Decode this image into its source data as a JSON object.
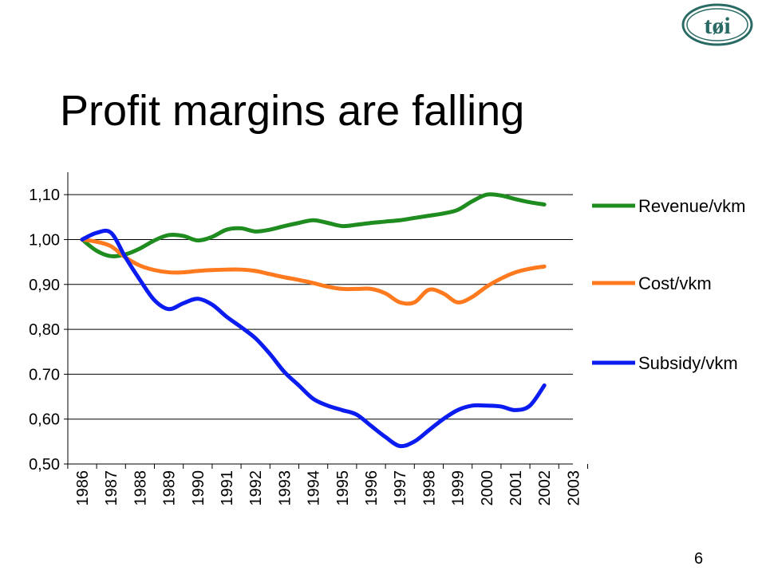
{
  "slide": {
    "title": "Profit margins are falling",
    "page_number": "6",
    "logo_text": "tøi"
  },
  "chart_data": {
    "type": "line",
    "title": "",
    "xlabel": "",
    "ylabel": "",
    "categories": [
      "1986",
      "1987",
      "1988",
      "1989",
      "1990",
      "1991",
      "1992",
      "1993",
      "1994",
      "1995",
      "1996",
      "1997",
      "1998",
      "1999",
      "2000",
      "2001",
      "2002",
      "2003"
    ],
    "y_tick_labels": [
      "0,50",
      "0,60",
      "0.70",
      "0,80",
      "0,90",
      "1,00",
      "1,10"
    ],
    "y_tick_values": [
      0.5,
      0.6,
      0.7,
      0.8,
      0.9,
      1.0,
      1.1
    ],
    "ylim": [
      0.5,
      1.15
    ],
    "grid": true,
    "legend_position": "right",
    "series": [
      {
        "name": "Revenue/vkm",
        "color": "#1f8c1f",
        "x": [
          1986,
          1986.5,
          1987,
          1987.5,
          1988,
          1988.5,
          1989,
          1989.5,
          1990,
          1990.5,
          1991,
          1991.5,
          1992,
          1992.5,
          1993,
          1993.5,
          1994,
          1994.5,
          1995,
          1995.5,
          1996,
          1996.5,
          1997,
          1997.5,
          1998,
          1998.5,
          1999,
          1999.5,
          2000,
          2000.5,
          2001,
          2001.5,
          2002
        ],
        "values": [
          1.0,
          0.975,
          0.963,
          0.967,
          0.98,
          0.998,
          1.01,
          1.008,
          0.998,
          1.006,
          1.022,
          1.025,
          1.018,
          1.022,
          1.03,
          1.037,
          1.043,
          1.037,
          1.03,
          1.033,
          1.037,
          1.04,
          1.043,
          1.048,
          1.053,
          1.058,
          1.066,
          1.085,
          1.1,
          1.098,
          1.09,
          1.083,
          1.078
        ]
      },
      {
        "name": "Cost/vkm",
        "color": "#ff7a1f",
        "x": [
          1986,
          1986.5,
          1987,
          1987.5,
          1988,
          1988.5,
          1989,
          1989.5,
          1990,
          1990.5,
          1991,
          1991.5,
          1992,
          1992.5,
          1993,
          1993.5,
          1994,
          1994.5,
          1995,
          1995.5,
          1996,
          1996.5,
          1997,
          1997.5,
          1998,
          1998.5,
          1999,
          1999.5,
          2000,
          2000.5,
          2001,
          2001.5,
          2002
        ],
        "values": [
          1.0,
          0.995,
          0.985,
          0.96,
          0.942,
          0.932,
          0.927,
          0.927,
          0.93,
          0.932,
          0.933,
          0.933,
          0.93,
          0.923,
          0.916,
          0.91,
          0.903,
          0.895,
          0.89,
          0.89,
          0.89,
          0.88,
          0.86,
          0.86,
          0.888,
          0.88,
          0.86,
          0.872,
          0.895,
          0.913,
          0.927,
          0.935,
          0.94
        ]
      },
      {
        "name": "Subsidy/vkm",
        "color": "#0a1cf0",
        "x": [
          1986,
          1986.5,
          1987,
          1987.5,
          1988,
          1988.5,
          1989,
          1989.5,
          1990,
          1990.5,
          1991,
          1991.5,
          1992,
          1992.5,
          1993,
          1993.5,
          1994,
          1994.5,
          1995,
          1995.5,
          1996,
          1996.5,
          1997,
          1997.5,
          1998,
          1998.5,
          1999,
          1999.5,
          2000,
          2000.5,
          2001,
          2001.5,
          2002
        ],
        "values": [
          1.0,
          1.015,
          1.015,
          0.96,
          0.91,
          0.865,
          0.845,
          0.858,
          0.868,
          0.855,
          0.828,
          0.805,
          0.78,
          0.745,
          0.705,
          0.675,
          0.645,
          0.63,
          0.62,
          0.61,
          0.585,
          0.56,
          0.54,
          0.55,
          0.575,
          0.6,
          0.62,
          0.63,
          0.63,
          0.628,
          0.62,
          0.63,
          0.675
        ]
      }
    ]
  }
}
